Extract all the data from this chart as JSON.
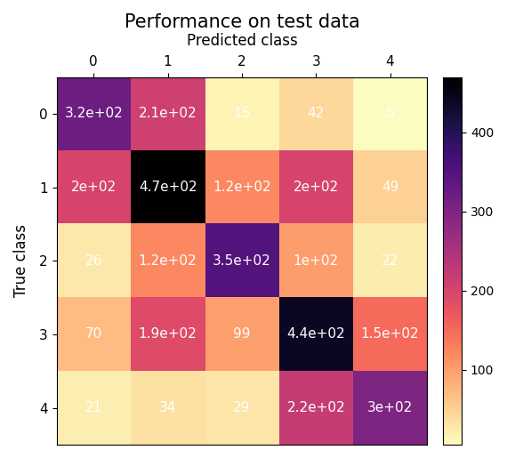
{
  "title": "Performance on test data",
  "xlabel": "Predicted class",
  "ylabel": "True class",
  "matrix": [
    [
      320,
      210,
      15,
      42,
      5
    ],
    [
      200,
      470,
      120,
      200,
      49
    ],
    [
      26,
      120,
      350,
      100,
      22
    ],
    [
      70,
      190,
      99,
      440,
      150
    ],
    [
      21,
      34,
      29,
      220,
      300
    ]
  ],
  "xticklabels": [
    "0",
    "1",
    "2",
    "3",
    "4"
  ],
  "yticklabels": [
    "0",
    "1",
    "2",
    "3",
    "4"
  ],
  "cmap": "magma_r",
  "colorbar_ticks": [
    100,
    200,
    300,
    400
  ],
  "cell_labels": [
    [
      "3.2e+02",
      "2.1e+02",
      "15",
      "42",
      "5"
    ],
    [
      "2e+02",
      "4.7e+02",
      "1.2e+02",
      "2e+02",
      "49"
    ],
    [
      "26",
      "1.2e+02",
      "3.5e+02",
      "1e+02",
      "22"
    ],
    [
      "70",
      "1.9e+02",
      "99",
      "4.4e+02",
      "1.5e+02"
    ],
    [
      "21",
      "34",
      "29",
      "2.2e+02",
      "3e+02"
    ]
  ],
  "title_fontsize": 15,
  "label_fontsize": 12,
  "tick_fontsize": 11,
  "cell_fontsize": 11,
  "figsize": [
    5.7,
    5.15
  ],
  "dpi": 100
}
